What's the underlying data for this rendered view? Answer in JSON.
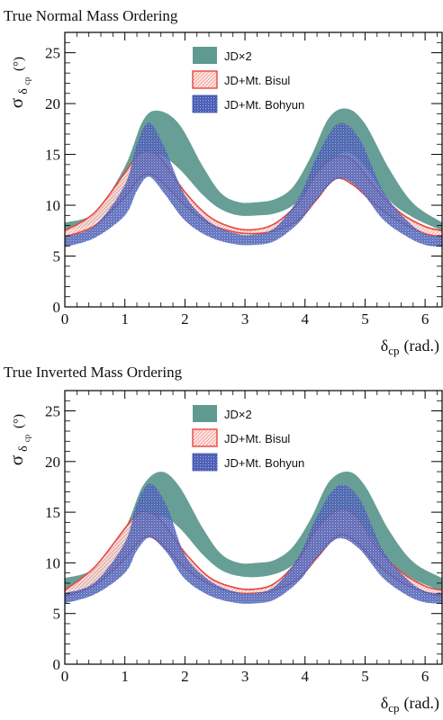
{
  "chart_data": [
    {
      "type": "area",
      "title": "True Normal Mass Ordering",
      "ylabel": "σ",
      "ylabel_sub": "δ",
      "ylabel_subsub": "cp",
      "ylabel_unit": "(°)",
      "xlabel": "δ",
      "xlabel_sub": "cp",
      "xlabel_unit": "(rad.)",
      "xlim": [
        0,
        6.283
      ],
      "ylim": [
        0,
        27
      ],
      "xticks": [
        0,
        1,
        2,
        3,
        4,
        5,
        6
      ],
      "yticks": [
        0,
        5,
        10,
        15,
        20,
        25
      ],
      "legend_position": "top-center",
      "series": [
        {
          "name": "JD×2",
          "color": "#5f9a90",
          "style": "solid-band",
          "x": [
            0,
            0.5,
            1.0,
            1.3,
            1.55,
            1.9,
            2.3,
            2.6,
            2.9,
            3.2,
            3.5,
            3.8,
            4.1,
            4.4,
            4.7,
            5.0,
            5.4,
            5.8,
            6.283
          ],
          "lower": [
            7.5,
            8.3,
            10.8,
            13.6,
            15.0,
            13.6,
            11.0,
            9.6,
            9.0,
            9.0,
            9.2,
            10.0,
            12.0,
            14.2,
            15.2,
            13.8,
            10.5,
            8.8,
            7.5
          ],
          "upper": [
            8.3,
            9.3,
            13.8,
            18.3,
            19.3,
            18.0,
            13.8,
            11.2,
            10.3,
            10.3,
            10.6,
            11.8,
            14.8,
            18.6,
            19.5,
            18.0,
            13.6,
            10.2,
            8.3
          ]
        },
        {
          "name": "JD+Mt. Bisul",
          "color": "#e8463c",
          "style": "hatched-band",
          "x": [
            0,
            0.5,
            1.0,
            1.2,
            1.38,
            1.6,
            2.0,
            2.4,
            2.8,
            3.14,
            3.5,
            3.9,
            4.2,
            4.5,
            4.8,
            5.2,
            5.6,
            6.0,
            6.283
          ],
          "lower": [
            6.9,
            8.0,
            10.8,
            12.4,
            13.1,
            12.4,
            10.0,
            8.2,
            7.4,
            7.2,
            7.5,
            8.6,
            10.6,
            12.6,
            12.0,
            9.9,
            8.3,
            7.2,
            6.9
          ],
          "upper": [
            7.5,
            9.3,
            13.2,
            14.8,
            15.3,
            14.6,
            11.3,
            8.9,
            7.8,
            7.6,
            8.2,
            10.3,
            13.2,
            14.7,
            14.4,
            11.5,
            9.2,
            7.9,
            7.5
          ]
        },
        {
          "name": "JD+Mt. Bohyun",
          "color": "#3e51a8",
          "style": "dotted-band",
          "x": [
            0,
            0.5,
            1.0,
            1.2,
            1.4,
            1.65,
            2.0,
            2.4,
            2.8,
            3.14,
            3.5,
            3.9,
            4.2,
            4.55,
            4.9,
            5.3,
            5.7,
            6.0,
            6.283
          ],
          "lower": [
            5.9,
            6.8,
            9.0,
            11.4,
            12.8,
            11.2,
            8.5,
            6.9,
            6.2,
            6.1,
            6.5,
            8.3,
            10.6,
            12.6,
            11.6,
            8.6,
            6.9,
            6.1,
            5.9
          ],
          "upper": [
            6.9,
            8.0,
            12.0,
            16.0,
            18.1,
            15.8,
            11.0,
            8.4,
            7.3,
            7.1,
            7.8,
            10.8,
            14.8,
            18.0,
            16.6,
            11.4,
            8.5,
            7.2,
            6.9
          ]
        }
      ]
    },
    {
      "type": "area",
      "title": "True Inverted Mass Ordering",
      "ylabel": "σ",
      "ylabel_sub": "δ",
      "ylabel_subsub": "cp",
      "ylabel_unit": "(°)",
      "xlabel": "δ",
      "xlabel_sub": "cp",
      "xlabel_unit": "(rad.)",
      "xlim": [
        0,
        6.283
      ],
      "ylim": [
        0,
        27
      ],
      "xticks": [
        0,
        1,
        2,
        3,
        4,
        5,
        6
      ],
      "yticks": [
        0,
        5,
        10,
        15,
        20,
        25
      ],
      "legend_position": "top-center",
      "series": [
        {
          "name": "JD×2",
          "color": "#5f9a90",
          "style": "solid-band",
          "x": [
            0,
            0.5,
            1.0,
            1.3,
            1.6,
            1.9,
            2.3,
            2.6,
            2.9,
            3.2,
            3.5,
            3.8,
            4.1,
            4.4,
            4.72,
            5.0,
            5.4,
            5.8,
            6.283
          ],
          "lower": [
            7.2,
            8.0,
            10.4,
            13.2,
            14.6,
            13.5,
            10.8,
            9.3,
            8.7,
            8.6,
            8.9,
            9.8,
            11.8,
            13.8,
            14.6,
            13.4,
            10.2,
            8.4,
            7.2
          ],
          "upper": [
            8.5,
            9.5,
            13.4,
            17.6,
            19.0,
            17.6,
            13.4,
            10.9,
            10.0,
            10.0,
            10.3,
            11.6,
            14.4,
            18.0,
            19.0,
            17.6,
            13.2,
            10.1,
            8.5
          ]
        },
        {
          "name": "JD+Mt. Bisul",
          "color": "#e8463c",
          "style": "hatched-band",
          "x": [
            0,
            0.5,
            1.0,
            1.2,
            1.38,
            1.6,
            2.0,
            2.4,
            2.8,
            3.14,
            3.5,
            3.9,
            4.2,
            4.55,
            4.85,
            5.2,
            5.6,
            6.0,
            6.283
          ],
          "lower": [
            6.7,
            7.8,
            10.4,
            11.9,
            12.6,
            11.9,
            9.5,
            7.9,
            7.1,
            7.0,
            7.3,
            8.5,
            10.5,
            12.7,
            12.1,
            9.9,
            8.1,
            7.1,
            6.7
          ],
          "upper": [
            7.3,
            9.6,
            13.4,
            14.8,
            15.0,
            14.2,
            11.0,
            8.6,
            7.6,
            7.4,
            8.0,
            10.4,
            13.4,
            15.2,
            14.6,
            11.5,
            9.1,
            7.7,
            7.3
          ]
        },
        {
          "name": "JD+Mt. Bohyun",
          "color": "#3e51a8",
          "style": "dotted-band",
          "x": [
            0,
            0.5,
            1.0,
            1.2,
            1.42,
            1.7,
            2.0,
            2.4,
            2.8,
            3.14,
            3.5,
            3.9,
            4.2,
            4.55,
            4.9,
            5.3,
            5.7,
            6.0,
            6.283
          ],
          "lower": [
            6.0,
            6.9,
            9.0,
            11.2,
            12.5,
            11.0,
            8.4,
            6.8,
            6.1,
            6.0,
            6.4,
            8.2,
            10.5,
            12.4,
            11.4,
            8.5,
            6.8,
            6.1,
            6.0
          ],
          "upper": [
            7.0,
            8.1,
            12.0,
            15.8,
            17.8,
            15.6,
            10.8,
            8.3,
            7.2,
            7.0,
            7.7,
            10.7,
            14.6,
            17.6,
            16.4,
            11.2,
            8.4,
            7.2,
            7.0
          ]
        }
      ]
    }
  ]
}
